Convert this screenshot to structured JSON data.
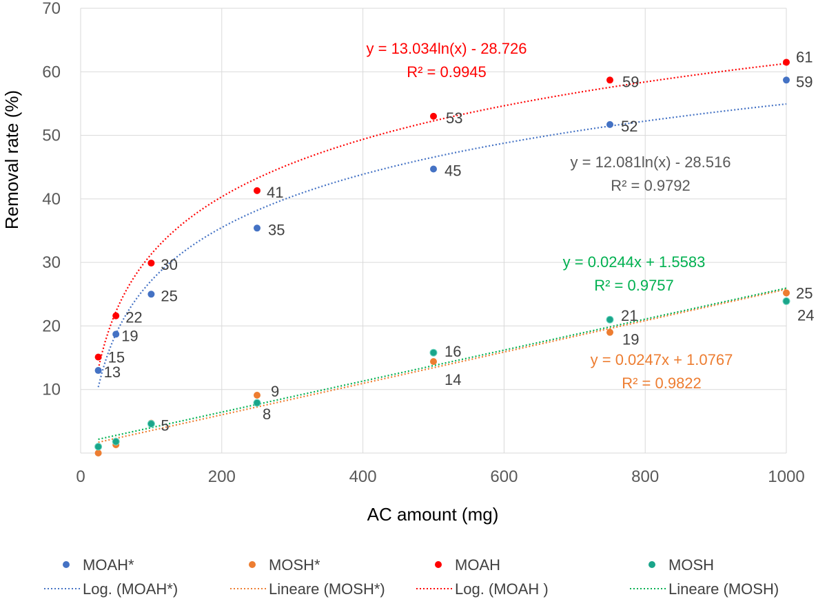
{
  "chart_data": {
    "type": "scatter",
    "xlabel": "AC amount (mg)",
    "ylabel": "Removal rate (%)",
    "xlim": [
      0,
      1000
    ],
    "ylim": [
      0,
      70
    ],
    "x_ticks": [
      "0",
      "200",
      "400",
      "600",
      "800",
      "1000"
    ],
    "y_ticks": [
      "10",
      "20",
      "30",
      "40",
      "50",
      "60",
      "70"
    ],
    "grid": true,
    "legend_position": "bottom",
    "series": [
      {
        "name": "MOAH*",
        "color": "#4472C4",
        "x": [
          25,
          50,
          100,
          250,
          500,
          750,
          1000
        ],
        "y": [
          13,
          18.7,
          25,
          35.4,
          44.7,
          51.7,
          58.7
        ],
        "labels": [
          "13",
          "19",
          "25",
          "35",
          "45",
          "52",
          "59"
        ],
        "trendline": {
          "name": "Log. (MOAH*)",
          "kind": "log",
          "a": 12.081,
          "b": -28.516,
          "equation": "y = 12.081ln(x) - 28.516",
          "r2": "R² = 0.9792",
          "label_color": "#595959"
        }
      },
      {
        "name": "MOSH*",
        "color": "#ED7D31",
        "x": [
          25,
          50,
          100,
          250,
          500,
          750,
          1000
        ],
        "y": [
          0,
          1.3,
          4.7,
          9.1,
          14.4,
          19,
          25.2
        ],
        "labels": [
          "",
          "",
          "",
          "9",
          "14",
          "19",
          "25"
        ],
        "trendline": {
          "name": "Lineare (MOSH*)",
          "kind": "linear",
          "a": 0.0247,
          "b": 1.0767,
          "equation": "y = 0.0247x + 1.0767",
          "r2": "R² = 0.9822",
          "label_color": "#ED7D31"
        }
      },
      {
        "name": "MOAH",
        "color": "#FF0000",
        "x": [
          25,
          50,
          100,
          250,
          500,
          750,
          1000
        ],
        "y": [
          15.1,
          21.6,
          29.9,
          41.3,
          53,
          58.7,
          61.5
        ],
        "labels": [
          "15",
          "22",
          "30",
          "41",
          "53",
          "59",
          "61"
        ],
        "trendline": {
          "name": "Log. (MOAH )",
          "kind": "log",
          "a": 13.034,
          "b": -28.726,
          "equation": "y = 13.034ln(x) - 28.726",
          "r2": "R² = 0.9945",
          "label_color": "#FF0000"
        }
      },
      {
        "name": "MOSH",
        "color": "#1AA58A",
        "x": [
          25,
          50,
          100,
          250,
          500,
          750,
          1000
        ],
        "y": [
          1,
          1.8,
          4.6,
          7.9,
          15.8,
          21,
          23.9
        ],
        "labels": [
          "",
          "",
          "5",
          "8",
          "16",
          "21",
          "24"
        ],
        "trendline": {
          "name": "Lineare (MOSH)",
          "kind": "linear",
          "a": 0.0244,
          "b": 1.5583,
          "equation": "y = 0.0244x + 1.5583",
          "r2": "R² = 0.9757",
          "label_color": "#00B050"
        }
      }
    ],
    "legend_colors": {
      "MOAH*_trend": "#4472C4",
      "MOSH*_trend": "#ED7D31",
      "MOAH_trend": "#FF0000",
      "MOSH_trend": "#00B050"
    }
  }
}
